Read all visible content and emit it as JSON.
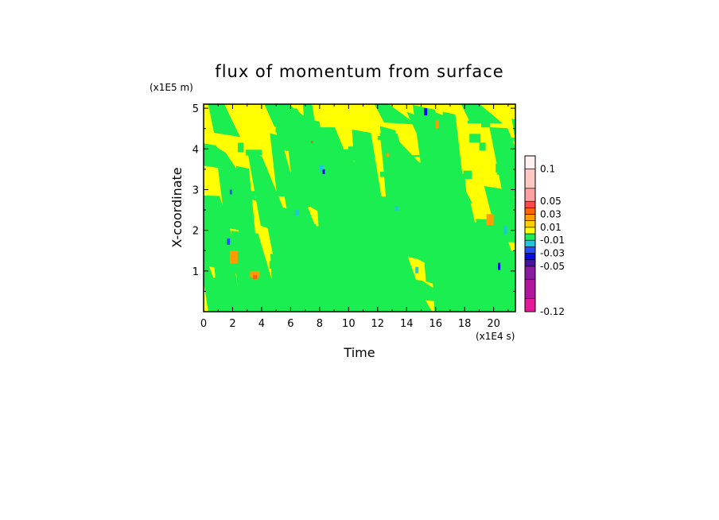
{
  "chart_data": {
    "type": "heatmap",
    "title": "flux of momentum from surface",
    "xlabel": "Time",
    "ylabel": "X-coordinate",
    "x_multiplier": "(x1E4 s)",
    "y_multiplier": "(x1E5 m)",
    "xlim": [
      0,
      21.5
    ],
    "ylim": [
      0,
      5.1
    ],
    "x_ticks": [
      0,
      2,
      4,
      6,
      8,
      10,
      12,
      14,
      16,
      18,
      20
    ],
    "y_ticks": [
      1,
      2,
      3,
      4,
      5
    ],
    "grid": false,
    "colorbar": {
      "position": "right",
      "levels": [
        -0.12,
        -0.1,
        -0.07,
        -0.05,
        -0.04,
        -0.03,
        -0.02,
        -0.01,
        0,
        0.01,
        0.02,
        0.03,
        0.04,
        0.05,
        0.07,
        0.1,
        0.12
      ],
      "colors": [
        "#e6199b",
        "#b3159e",
        "#8a1aa0",
        "#4b0fa0",
        "#0a0ae6",
        "#2650ff",
        "#1ec8dc",
        "#1aee50",
        "#ffff00",
        "#ffcf00",
        "#ff9c00",
        "#ff6400",
        "#ff4848",
        "#ffa0a0",
        "#ffc8c0",
        "#fff0f0"
      ],
      "labels": [
        "0.1",
        "0.05",
        "0.03",
        "0.01",
        "-0.01",
        "-0.03",
        "-0.05",
        "-0.12"
      ],
      "label_values": [
        0.1,
        0.05,
        0.03,
        0.01,
        -0.01,
        -0.03,
        -0.05,
        -0.12
      ]
    },
    "field_note": "dominant values between -0.01 and 0.01 (green and yellow), with sparse extremes up to about 0.05 and down to about -0.05"
  }
}
